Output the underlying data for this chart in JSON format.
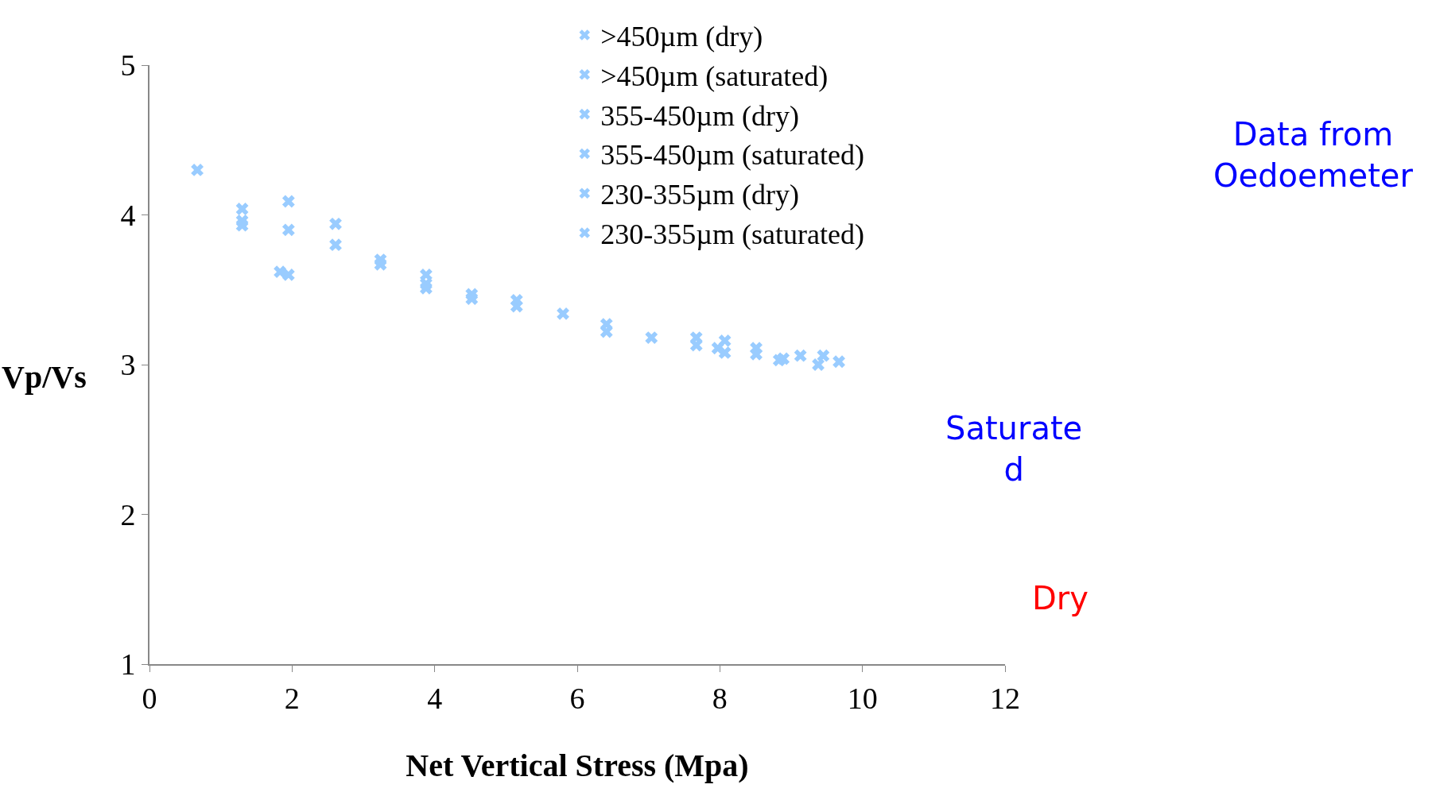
{
  "chart_data": {
    "type": "scatter",
    "xlabel": "Net Vertical Stress (Mpa)",
    "ylabel": "Vp/Vs",
    "xlim": [
      0,
      12
    ],
    "xticks": [
      0,
      2,
      4,
      6,
      8,
      10,
      12
    ],
    "ylim": [
      1,
      5
    ],
    "yticks": [
      1,
      2,
      3,
      4,
      5
    ],
    "grid": false,
    "legend": "top",
    "marker": "cross",
    "annotations": [
      "Data from\nOedoemeter",
      "Saturate\nd",
      "Dry"
    ],
    "series": [
      {
        "name": ">450µm (dry)",
        "color": "#99ccff",
        "x": [
          0.67,
          1.83,
          3.88,
          5.15,
          7.67,
          8.83
        ],
        "values": [
          4.3,
          3.62,
          3.6,
          3.39,
          3.13,
          3.03
        ]
      },
      {
        "name": ">450µm (saturated)",
        "color": "#99ccff",
        "x": [
          1.3,
          1.95,
          3.88,
          5.8,
          8.07,
          8.89
        ],
        "values": [
          4.04,
          3.6,
          3.54,
          3.34,
          3.16,
          3.04
        ]
      },
      {
        "name": "355-450µm (dry)",
        "color": "#99ccff",
        "x": [
          1.3,
          2.61,
          3.88,
          6.41,
          7.97,
          9.13
        ],
        "values": [
          3.96,
          3.94,
          3.51,
          3.27,
          3.11,
          3.06
        ]
      },
      {
        "name": "355-450µm (saturated)",
        "color": "#99ccff",
        "x": [
          1.3,
          2.61,
          4.52,
          6.41,
          8.07,
          9.38
        ],
        "values": [
          3.93,
          3.8,
          3.47,
          3.22,
          3.08,
          3.0
        ]
      },
      {
        "name": "230-355µm (dry)",
        "color": "#99ccff",
        "x": [
          1.95,
          3.24,
          4.52,
          7.04,
          8.51,
          9.45
        ],
        "values": [
          4.09,
          3.7,
          3.44,
          3.18,
          3.11,
          3.06
        ]
      },
      {
        "name": "230-355µm (saturated)",
        "color": "#99ccff",
        "x": [
          1.95,
          3.24,
          5.15,
          7.67,
          8.51,
          9.67
        ],
        "values": [
          3.9,
          3.67,
          3.43,
          3.18,
          3.07,
          3.02
        ]
      }
    ]
  }
}
